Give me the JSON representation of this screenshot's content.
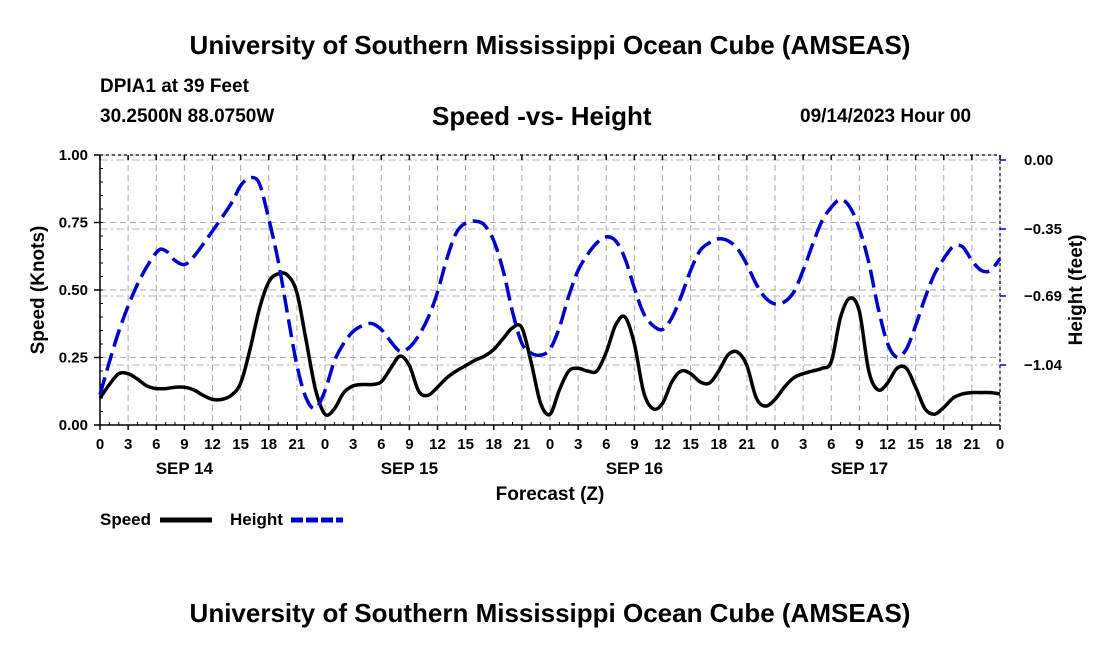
{
  "header": {
    "title": "University of Southern Mississippi Ocean Cube (AMSEAS)",
    "station": "DPIA1 at 39 Feet",
    "coords": "30.2500N  88.0750W",
    "chart_title": "Speed -vs- Height",
    "date": "09/14/2023 Hour 00"
  },
  "footer": {
    "title": "University of Southern Mississippi Ocean Cube (AMSEAS)"
  },
  "legend": {
    "speed": "Speed",
    "height": "Height"
  },
  "colors": {
    "speed": "#000000",
    "height": "#0000cc",
    "grid": "#aaaaaa"
  },
  "chart_data": {
    "type": "line",
    "title": "Speed -vs- Height",
    "xlabel": "Forecast (Z)",
    "ylabel_left": "Speed (Knots)",
    "ylabel_right": "Height (feet)",
    "x_range": [
      0,
      96
    ],
    "x_tick_labels": [
      "0",
      "3",
      "6",
      "9",
      "12",
      "15",
      "18",
      "21",
      "0",
      "3",
      "6",
      "9",
      "12",
      "15",
      "18",
      "21",
      "0",
      "3",
      "6",
      "9",
      "12",
      "15",
      "18",
      "21",
      "0",
      "3",
      "6",
      "9",
      "12",
      "15",
      "18",
      "21",
      "0"
    ],
    "day_labels": [
      {
        "label": "SEP 14",
        "x": 9
      },
      {
        "label": "SEP 15",
        "x": 33
      },
      {
        "label": "SEP 16",
        "x": 57
      },
      {
        "label": "SEP 17",
        "x": 81
      }
    ],
    "y_left": {
      "range": [
        0,
        1
      ],
      "ticks": [
        "0.00",
        "0.25",
        "0.50",
        "0.75",
        "1.00"
      ]
    },
    "y_right": {
      "range": [
        -1.39,
        0
      ],
      "ticks": [
        "0.00",
        "−0.35",
        "−0.69",
        "−1.04"
      ],
      "tick_values": [
        0,
        -0.35,
        -0.69,
        -1.04
      ]
    },
    "series": [
      {
        "name": "Speed",
        "axis": "left",
        "style": "solid",
        "points": [
          [
            0,
            0.1
          ],
          [
            1,
            0.15
          ],
          [
            2,
            0.19
          ],
          [
            3,
            0.19
          ],
          [
            4,
            0.17
          ],
          [
            5,
            0.145
          ],
          [
            6,
            0.135
          ],
          [
            7,
            0.135
          ],
          [
            8,
            0.14
          ],
          [
            9,
            0.14
          ],
          [
            10,
            0.13
          ],
          [
            11,
            0.11
          ],
          [
            12,
            0.095
          ],
          [
            13,
            0.095
          ],
          [
            14,
            0.11
          ],
          [
            15,
            0.155
          ],
          [
            16,
            0.28
          ],
          [
            17,
            0.43
          ],
          [
            18,
            0.53
          ],
          [
            19,
            0.56
          ],
          [
            20,
            0.555
          ],
          [
            21,
            0.49
          ],
          [
            22,
            0.31
          ],
          [
            23,
            0.13
          ],
          [
            24,
            0.04
          ],
          [
            25,
            0.06
          ],
          [
            26,
            0.12
          ],
          [
            27,
            0.145
          ],
          [
            28,
            0.15
          ],
          [
            29,
            0.15
          ],
          [
            30,
            0.16
          ],
          [
            31,
            0.21
          ],
          [
            32,
            0.255
          ],
          [
            33,
            0.22
          ],
          [
            34,
            0.125
          ],
          [
            35,
            0.11
          ],
          [
            36,
            0.14
          ],
          [
            37,
            0.175
          ],
          [
            38,
            0.2
          ],
          [
            39,
            0.22
          ],
          [
            40,
            0.24
          ],
          [
            41,
            0.255
          ],
          [
            42,
            0.28
          ],
          [
            43,
            0.32
          ],
          [
            44,
            0.36
          ],
          [
            45,
            0.36
          ],
          [
            46,
            0.23
          ],
          [
            47,
            0.08
          ],
          [
            48,
            0.04
          ],
          [
            49,
            0.13
          ],
          [
            50,
            0.2
          ],
          [
            51,
            0.21
          ],
          [
            52,
            0.2
          ],
          [
            53,
            0.2
          ],
          [
            54,
            0.27
          ],
          [
            55,
            0.37
          ],
          [
            56,
            0.4
          ],
          [
            57,
            0.3
          ],
          [
            58,
            0.12
          ],
          [
            59,
            0.06
          ],
          [
            60,
            0.08
          ],
          [
            61,
            0.16
          ],
          [
            62,
            0.2
          ],
          [
            63,
            0.19
          ],
          [
            64,
            0.16
          ],
          [
            65,
            0.155
          ],
          [
            66,
            0.2
          ],
          [
            67,
            0.26
          ],
          [
            68,
            0.27
          ],
          [
            69,
            0.22
          ],
          [
            70,
            0.1
          ],
          [
            71,
            0.07
          ],
          [
            72,
            0.095
          ],
          [
            73,
            0.14
          ],
          [
            74,
            0.175
          ],
          [
            75,
            0.19
          ],
          [
            76,
            0.2
          ],
          [
            77,
            0.21
          ],
          [
            78,
            0.235
          ],
          [
            79,
            0.4
          ],
          [
            80,
            0.47
          ],
          [
            81,
            0.42
          ],
          [
            82,
            0.2
          ],
          [
            83,
            0.13
          ],
          [
            84,
            0.155
          ],
          [
            85,
            0.21
          ],
          [
            86,
            0.21
          ],
          [
            87,
            0.14
          ],
          [
            88,
            0.06
          ],
          [
            89,
            0.04
          ],
          [
            90,
            0.065
          ],
          [
            91,
            0.1
          ],
          [
            92,
            0.115
          ],
          [
            93,
            0.12
          ],
          [
            94,
            0.12
          ],
          [
            95,
            0.12
          ],
          [
            96,
            0.115
          ]
        ]
      },
      {
        "name": "Height",
        "axis": "right",
        "style": "dashed",
        "points": [
          [
            0,
            -1.19
          ],
          [
            2,
            -0.87
          ],
          [
            4,
            -0.63
          ],
          [
            6,
            -0.47
          ],
          [
            7,
            -0.46
          ],
          [
            8,
            -0.51
          ],
          [
            9,
            -0.53
          ],
          [
            10,
            -0.49
          ],
          [
            12,
            -0.36
          ],
          [
            14,
            -0.22
          ],
          [
            15,
            -0.13
          ],
          [
            16,
            -0.09
          ],
          [
            17,
            -0.12
          ],
          [
            18,
            -0.3
          ],
          [
            19,
            -0.51
          ],
          [
            20,
            -0.78
          ],
          [
            21,
            -1.04
          ],
          [
            22,
            -1.21
          ],
          [
            23,
            -1.26
          ],
          [
            24,
            -1.17
          ],
          [
            25,
            -1.02
          ],
          [
            26,
            -0.93
          ],
          [
            27,
            -0.87
          ],
          [
            28,
            -0.84
          ],
          [
            29,
            -0.83
          ],
          [
            30,
            -0.86
          ],
          [
            31,
            -0.92
          ],
          [
            32,
            -0.97
          ],
          [
            33,
            -0.95
          ],
          [
            34,
            -0.89
          ],
          [
            35,
            -0.8
          ],
          [
            36,
            -0.67
          ],
          [
            37,
            -0.5
          ],
          [
            38,
            -0.37
          ],
          [
            39,
            -0.32
          ],
          [
            40,
            -0.31
          ],
          [
            41,
            -0.33
          ],
          [
            42,
            -0.41
          ],
          [
            43,
            -0.56
          ],
          [
            44,
            -0.77
          ],
          [
            45,
            -0.93
          ],
          [
            46,
            -0.98
          ],
          [
            47,
            -0.99
          ],
          [
            48,
            -0.96
          ],
          [
            49,
            -0.85
          ],
          [
            50,
            -0.69
          ],
          [
            51,
            -0.56
          ],
          [
            52,
            -0.48
          ],
          [
            53,
            -0.42
          ],
          [
            54,
            -0.39
          ],
          [
            55,
            -0.41
          ],
          [
            56,
            -0.5
          ],
          [
            57,
            -0.65
          ],
          [
            58,
            -0.78
          ],
          [
            59,
            -0.84
          ],
          [
            60,
            -0.86
          ],
          [
            61,
            -0.8
          ],
          [
            62,
            -0.69
          ],
          [
            63,
            -0.56
          ],
          [
            64,
            -0.46
          ],
          [
            65,
            -0.42
          ],
          [
            66,
            -0.4
          ],
          [
            67,
            -0.41
          ],
          [
            68,
            -0.45
          ],
          [
            69,
            -0.53
          ],
          [
            70,
            -0.63
          ],
          [
            71,
            -0.7
          ],
          [
            72,
            -0.73
          ],
          [
            73,
            -0.72
          ],
          [
            74,
            -0.67
          ],
          [
            75,
            -0.56
          ],
          [
            76,
            -0.43
          ],
          [
            77,
            -0.31
          ],
          [
            78,
            -0.24
          ],
          [
            79,
            -0.2
          ],
          [
            80,
            -0.24
          ],
          [
            81,
            -0.35
          ],
          [
            82,
            -0.52
          ],
          [
            83,
            -0.75
          ],
          [
            84,
            -0.93
          ],
          [
            85,
            -1.0
          ],
          [
            86,
            -0.96
          ],
          [
            87,
            -0.84
          ],
          [
            88,
            -0.7
          ],
          [
            89,
            -0.58
          ],
          [
            90,
            -0.5
          ],
          [
            91,
            -0.44
          ],
          [
            92,
            -0.44
          ],
          [
            93,
            -0.51
          ],
          [
            94,
            -0.56
          ],
          [
            95,
            -0.56
          ],
          [
            96,
            -0.5
          ]
        ]
      }
    ]
  }
}
